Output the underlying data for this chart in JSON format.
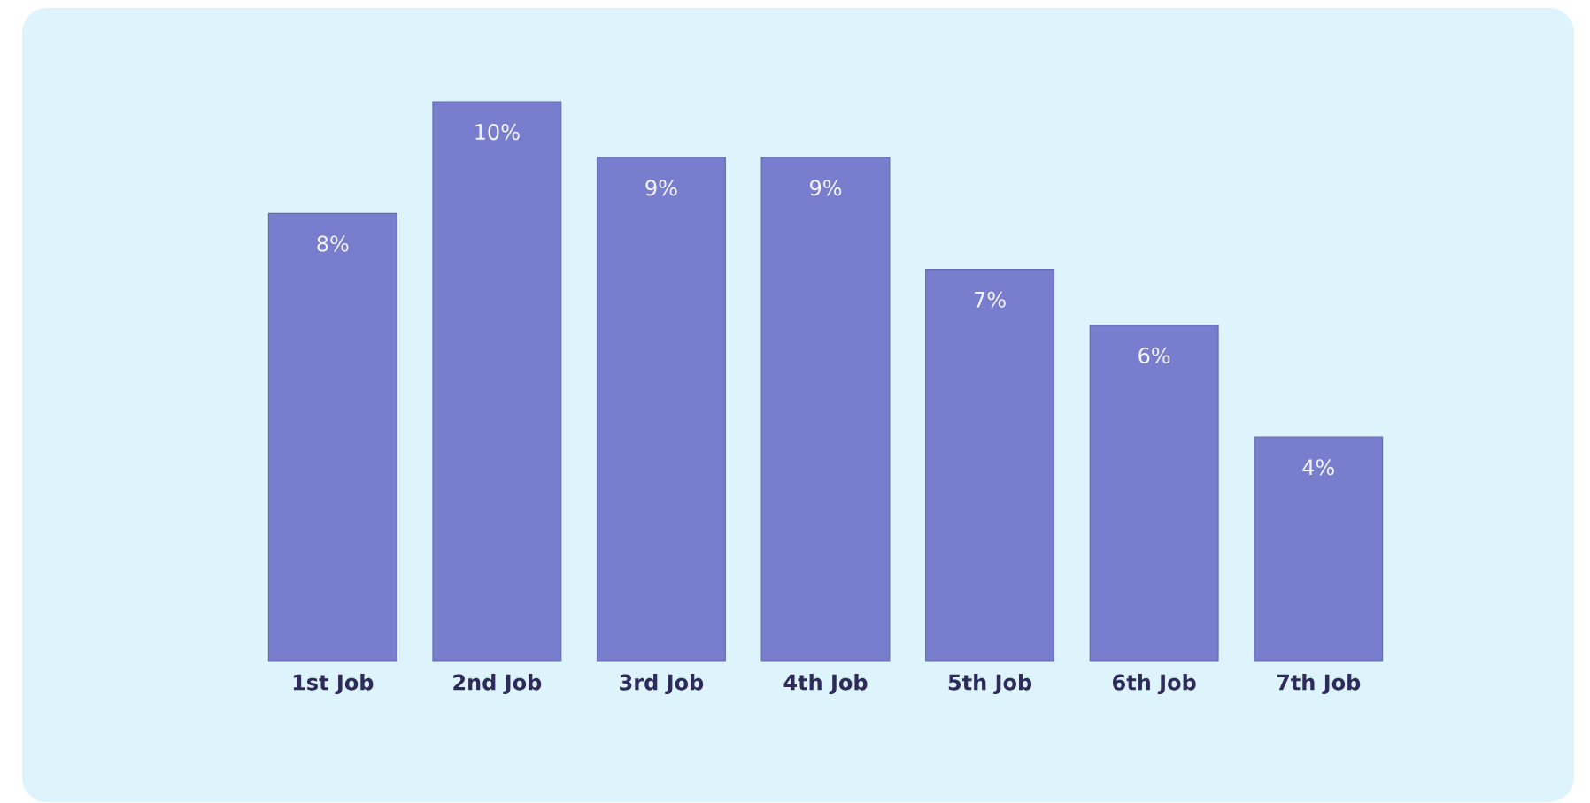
{
  "chart_data": {
    "type": "bar",
    "categories": [
      "1st Job",
      "2nd Job",
      "3rd Job",
      "4th Job",
      "5th Job",
      "6th Job",
      "7th Job"
    ],
    "values": [
      8,
      10,
      9,
      9,
      7,
      6,
      4
    ],
    "value_labels": [
      "8%",
      "10%",
      "9%",
      "9%",
      "7%",
      "6%",
      "4%"
    ],
    "color": "#787dce"
  }
}
